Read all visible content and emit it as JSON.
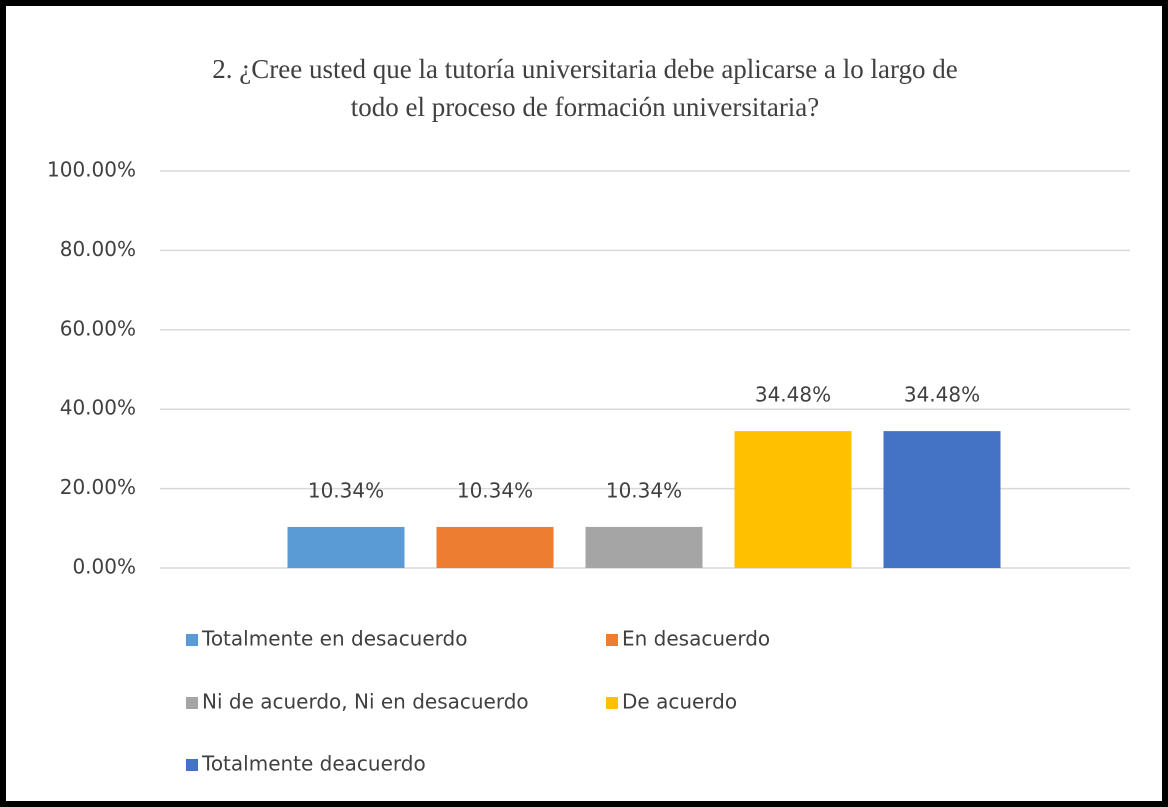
{
  "chart_data": {
    "type": "bar",
    "title": "2. ¿Cree usted que la tutoría universitaria debe aplicarse a lo largo de todo el proceso de formación universitaria?",
    "categories": [
      null
    ],
    "series": [
      {
        "name": "Totalmente en desacuerdo",
        "color": "#5b9bd5",
        "values": [
          10.34
        ],
        "value_labels": [
          "10.34%"
        ]
      },
      {
        "name": "En desacuerdo",
        "color": "#ed7d31",
        "values": [
          10.34
        ],
        "value_labels": [
          "10.34%"
        ]
      },
      {
        "name": "Ni de acuerdo, Ni en desacuerdo",
        "color": "#a5a5a5",
        "values": [
          10.34
        ],
        "value_labels": [
          "10.34%"
        ]
      },
      {
        "name": "De acuerdo",
        "color": "#ffc000",
        "values": [
          34.48
        ],
        "value_labels": [
          "34.48%"
        ]
      },
      {
        "name": "Totalmente deacuerdo",
        "color": "#4472c4",
        "values": [
          34.48
        ],
        "value_labels": [
          "34.48%"
        ]
      }
    ],
    "ylim": [
      0,
      100
    ],
    "yticks": [
      {
        "value": 0,
        "label": "0.00%"
      },
      {
        "value": 20,
        "label": "20.00%"
      },
      {
        "value": 40,
        "label": "40.00%"
      },
      {
        "value": 60,
        "label": "60.00%"
      },
      {
        "value": 80,
        "label": "80.00%"
      },
      {
        "value": 100,
        "label": "100.00%"
      }
    ],
    "grid": true,
    "legend": "bottom"
  }
}
